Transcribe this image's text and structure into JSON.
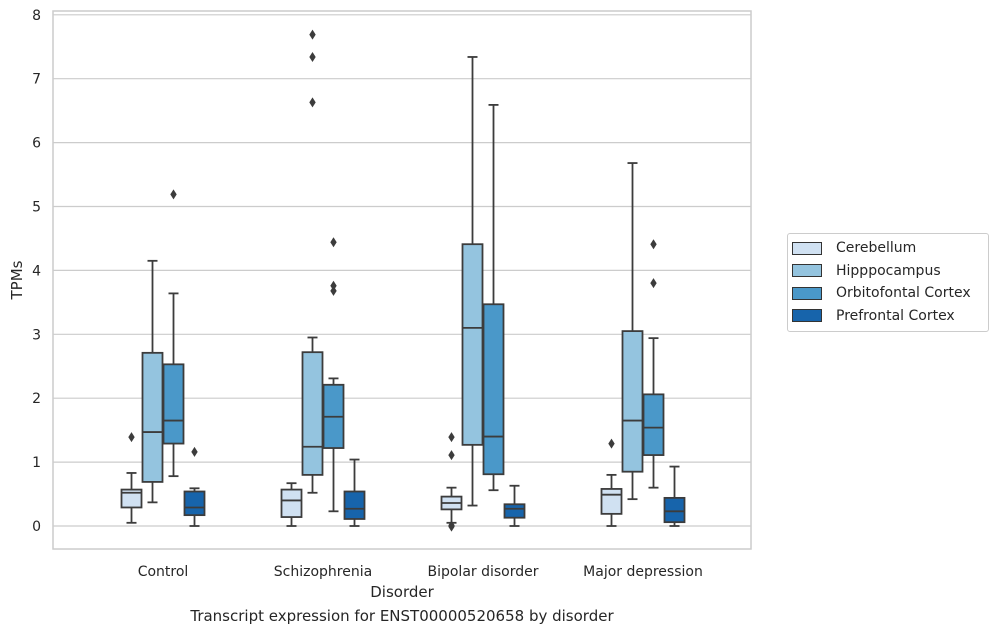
{
  "chart_data": {
    "type": "box",
    "xlabel": "Disorder",
    "ylabel": "TPMs",
    "ylim": [
      -0.35,
      8.05
    ],
    "yticks": [
      0,
      1,
      2,
      3,
      4,
      5,
      6,
      7,
      8
    ],
    "grid": true,
    "legend_position": "right",
    "categories": [
      "Control",
      "Schizophrenia",
      "Bipolar disorder",
      "Major depression"
    ],
    "series": [
      {
        "name": "Cerebellum",
        "color": "#d0e1f2",
        "boxes": [
          {
            "whisker_low": 0.05,
            "q1": 0.29,
            "median": 0.52,
            "q3": 0.57,
            "whisker_high": 0.83,
            "outliers": [
              1.39
            ]
          },
          {
            "whisker_low": 0.0,
            "q1": 0.14,
            "median": 0.4,
            "q3": 0.57,
            "whisker_high": 0.67,
            "outliers": []
          },
          {
            "whisker_low": 0.05,
            "q1": 0.26,
            "median": 0.36,
            "q3": 0.46,
            "whisker_high": 0.6,
            "outliers": [
              1.39,
              1.11,
              0.01,
              -0.01
            ]
          },
          {
            "whisker_low": 0.0,
            "q1": 0.19,
            "median": 0.49,
            "q3": 0.58,
            "whisker_high": 0.8,
            "outliers": [
              1.29
            ]
          }
        ]
      },
      {
        "name": "Hipppocampus",
        "color": "#94c4df",
        "boxes": [
          {
            "whisker_low": 0.37,
            "q1": 0.69,
            "median": 1.47,
            "q3": 2.71,
            "whisker_high": 4.15,
            "outliers": []
          },
          {
            "whisker_low": 0.52,
            "q1": 0.8,
            "median": 1.24,
            "q3": 2.72,
            "whisker_high": 2.95,
            "outliers": [
              7.69,
              7.34,
              6.63
            ]
          },
          {
            "whisker_low": 0.32,
            "q1": 1.27,
            "median": 3.1,
            "q3": 4.41,
            "whisker_high": 7.34,
            "outliers": []
          },
          {
            "whisker_low": 0.42,
            "q1": 0.85,
            "median": 1.65,
            "q3": 3.05,
            "whisker_high": 5.68,
            "outliers": []
          }
        ]
      },
      {
        "name": "Orbitofontal Cortex",
        "color": "#4a98c9",
        "boxes": [
          {
            "whisker_low": 0.78,
            "q1": 1.29,
            "median": 1.65,
            "q3": 2.53,
            "whisker_high": 3.64,
            "outliers": [
              5.19
            ]
          },
          {
            "whisker_low": 0.23,
            "q1": 1.22,
            "median": 1.71,
            "q3": 2.21,
            "whisker_high": 2.31,
            "outliers": [
              4.44,
              3.76,
              3.68
            ]
          },
          {
            "whisker_low": 0.56,
            "q1": 0.81,
            "median": 1.4,
            "q3": 3.47,
            "whisker_high": 6.59,
            "outliers": []
          },
          {
            "whisker_low": 0.6,
            "q1": 1.11,
            "median": 1.54,
            "q3": 2.06,
            "whisker_high": 2.94,
            "outliers": [
              4.41,
              3.8
            ]
          }
        ]
      },
      {
        "name": "Prefrontal Cortex",
        "color": "#1764ab",
        "boxes": [
          {
            "whisker_low": 0.0,
            "q1": 0.17,
            "median": 0.29,
            "q3": 0.54,
            "whisker_high": 0.59,
            "outliers": [
              1.16
            ]
          },
          {
            "whisker_low": 0.0,
            "q1": 0.11,
            "median": 0.27,
            "q3": 0.54,
            "whisker_high": 1.04,
            "outliers": []
          },
          {
            "whisker_low": 0.0,
            "q1": 0.13,
            "median": 0.27,
            "q3": 0.34,
            "whisker_high": 0.63,
            "outliers": []
          },
          {
            "whisker_low": 0.0,
            "q1": 0.06,
            "median": 0.23,
            "q3": 0.44,
            "whisker_high": 0.93,
            "outliers": []
          }
        ]
      }
    ],
    "caption": "Transcript expression for ENST00000520658 by disorder"
  }
}
